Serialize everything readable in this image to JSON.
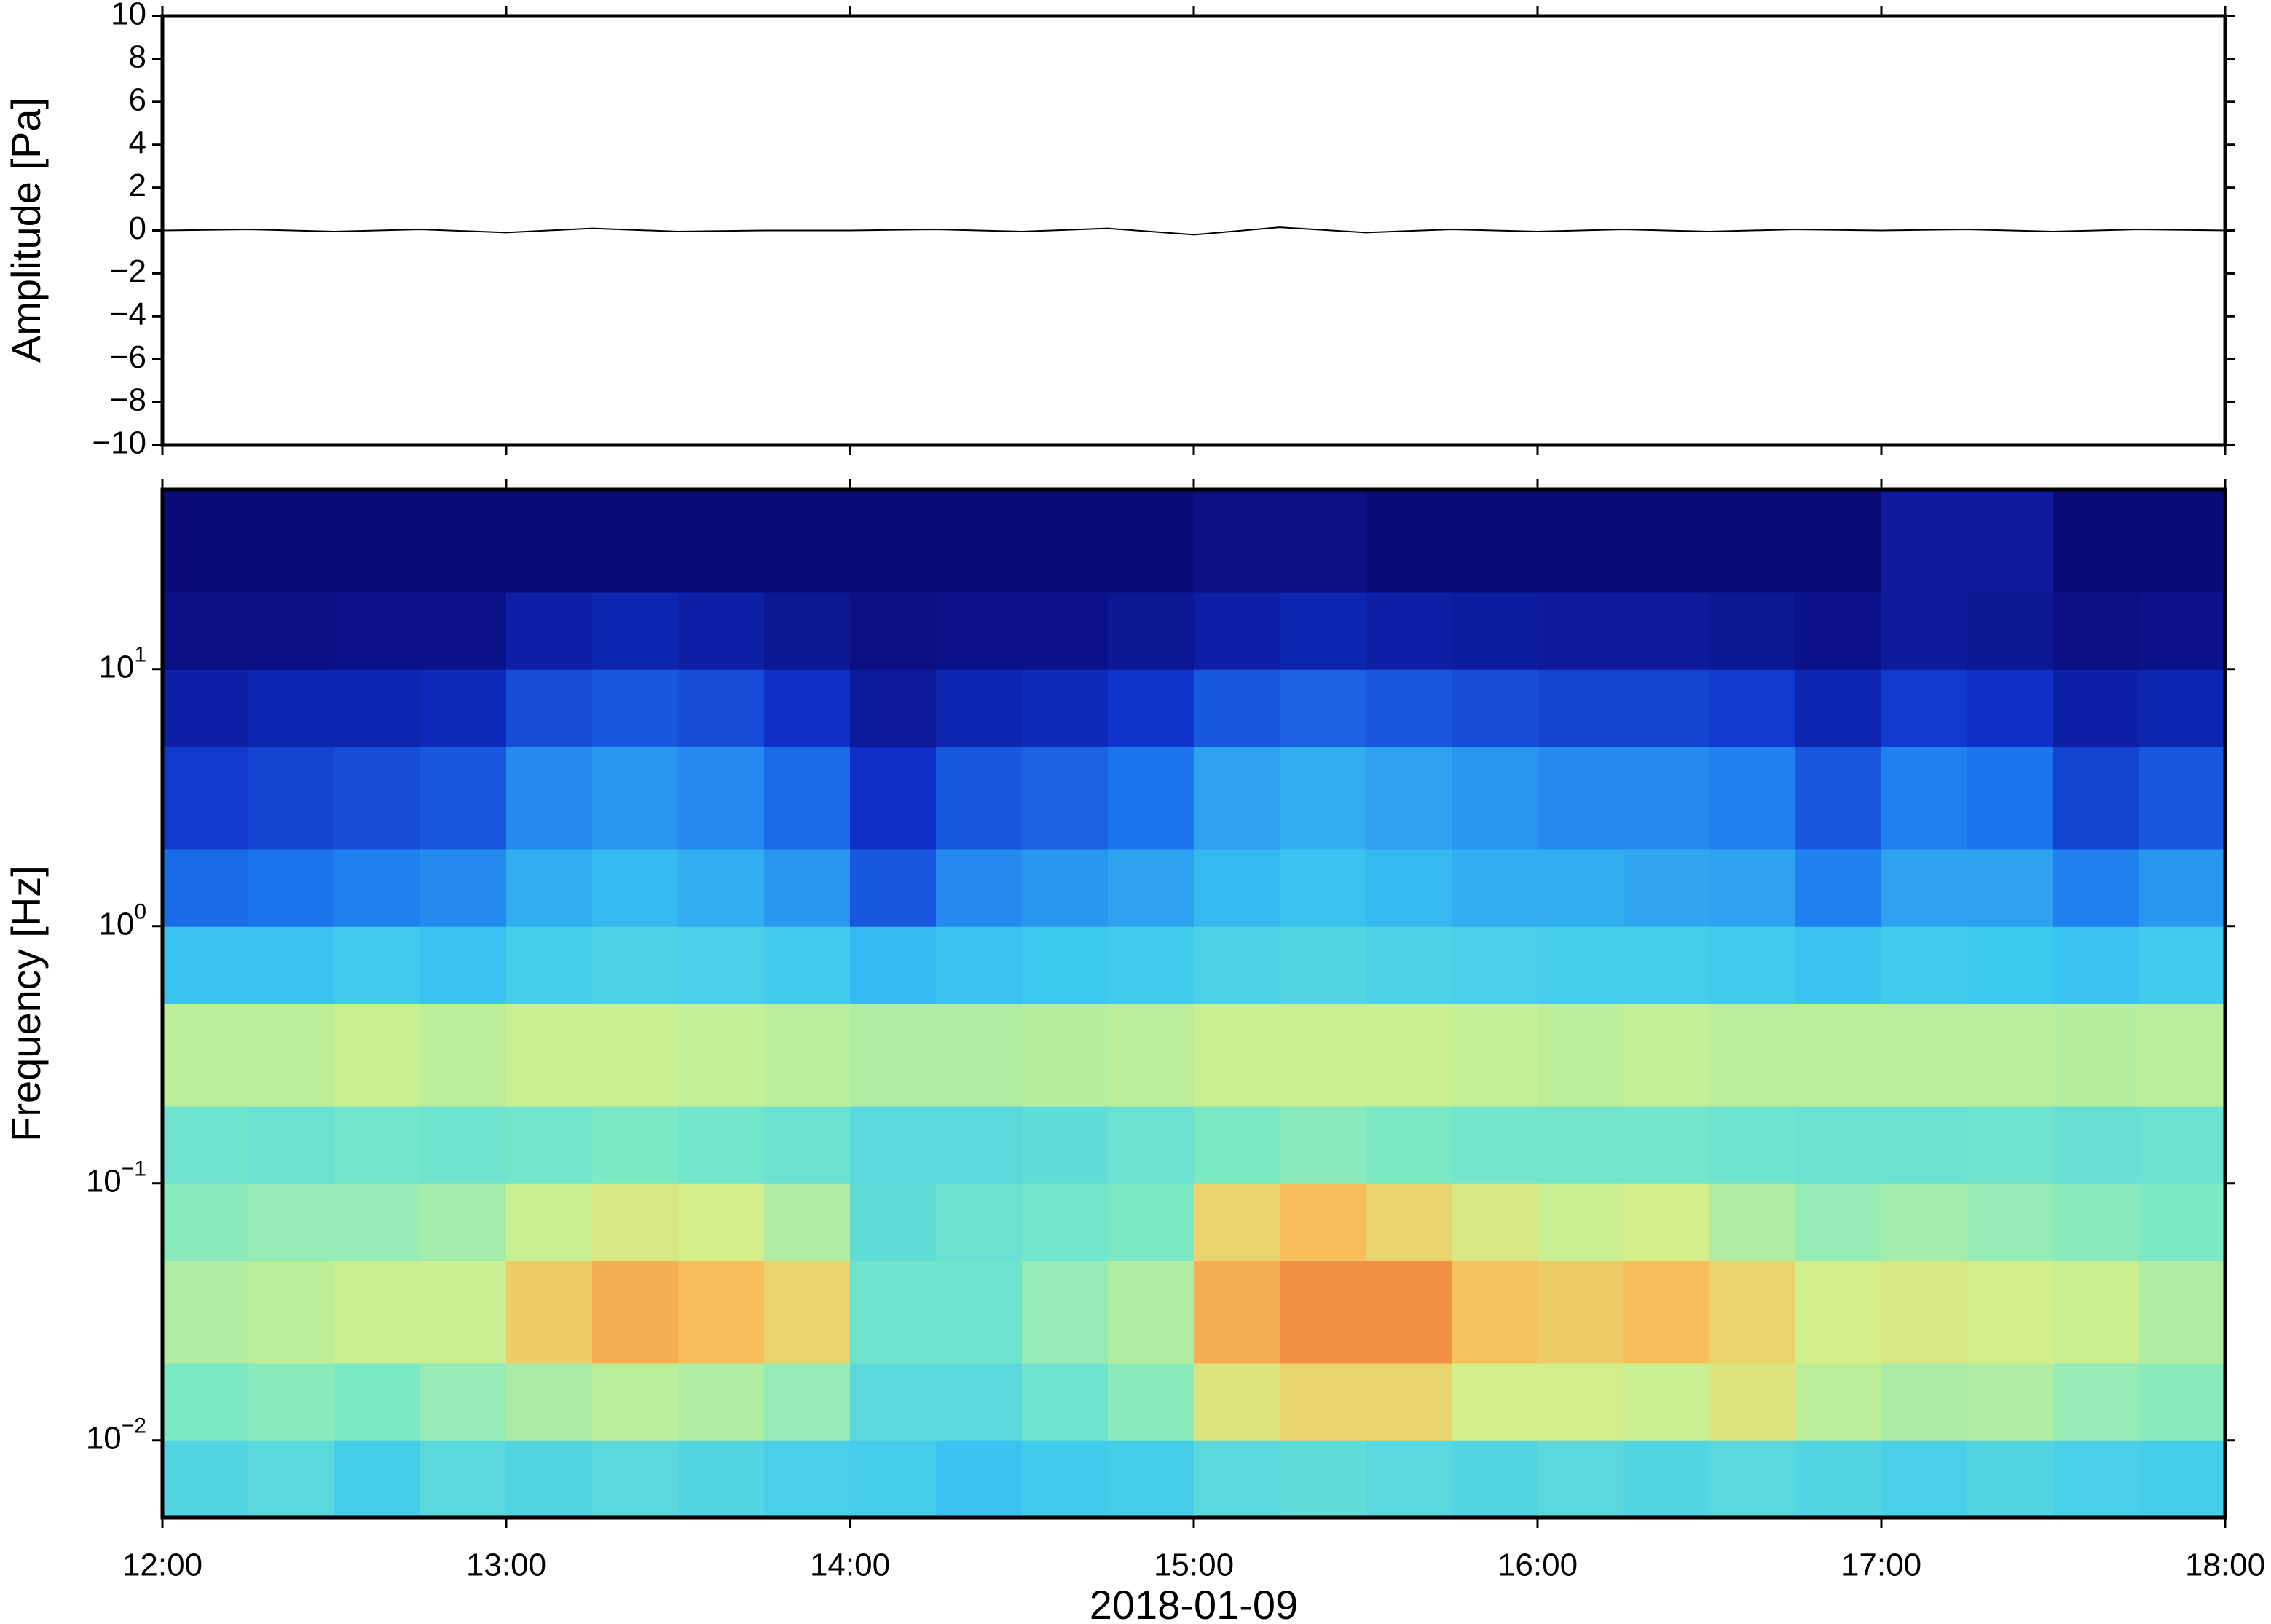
{
  "chart_data": [
    {
      "type": "line",
      "ylabel": "Amplitude [Pa]",
      "xlim": [
        "2018-01-09T12:00",
        "2018-01-09T18:00"
      ],
      "x": [
        "2018-01-09T12:00",
        "2018-01-09T12:15",
        "2018-01-09T12:30",
        "2018-01-09T12:45",
        "2018-01-09T13:00",
        "2018-01-09T13:15",
        "2018-01-09T13:30",
        "2018-01-09T13:45",
        "2018-01-09T14:00",
        "2018-01-09T14:15",
        "2018-01-09T14:30",
        "2018-01-09T14:45",
        "2018-01-09T15:00",
        "2018-01-09T15:15",
        "2018-01-09T15:30",
        "2018-01-09T15:45",
        "2018-01-09T16:00",
        "2018-01-09T16:15",
        "2018-01-09T16:30",
        "2018-01-09T16:45",
        "2018-01-09T17:00",
        "2018-01-09T17:15",
        "2018-01-09T17:30",
        "2018-01-09T17:45",
        "2018-01-09T18:00"
      ],
      "series": [
        {
          "color": "#000000",
          "values": [
            0,
            0.05,
            -0.05,
            0.05,
            -0.1,
            0.1,
            -0.05,
            0,
            0,
            0.05,
            -0.05,
            0.1,
            -0.2,
            0.15,
            -0.1,
            0.05,
            -0.05,
            0.05,
            -0.05,
            0.05,
            0,
            0.05,
            -0.05,
            0.05,
            0
          ]
        }
      ],
      "ylim": [
        -10,
        10
      ],
      "yticks": [
        {
          "value": -10,
          "label": "−10"
        },
        {
          "value": -8,
          "label": "−8"
        },
        {
          "value": -6,
          "label": "−6"
        },
        {
          "value": -4,
          "label": "−4"
        },
        {
          "value": -2,
          "label": "−2"
        },
        0,
        2,
        4,
        6,
        8,
        10
      ]
    },
    {
      "type": "heatmap",
      "ylabel": "Frequency [Hz]",
      "xlabel": "2018-01-09",
      "xlim": [
        "2018-01-09T12:00",
        "2018-01-09T18:00"
      ],
      "xticks": [
        {
          "value": "2018-01-09T12:00",
          "label": "12:00"
        },
        {
          "value": "2018-01-09T13:00",
          "label": "13:00"
        },
        {
          "value": "2018-01-09T14:00",
          "label": "14:00"
        },
        {
          "value": "2018-01-09T15:00",
          "label": "15:00"
        },
        {
          "value": "2018-01-09T16:00",
          "label": "16:00"
        },
        {
          "value": "2018-01-09T17:00",
          "label": "17:00"
        },
        {
          "value": "2018-01-09T18:00",
          "label": "18:00"
        }
      ],
      "log_y": true,
      "ylim": [
        0.005,
        50
      ],
      "yticks": [
        {
          "value": 0.01,
          "label": "10",
          "exponent": "−2"
        },
        {
          "value": 0.1,
          "label": "10",
          "exponent": "−1"
        },
        {
          "value": 1,
          "label": "10",
          "exponent": "0"
        },
        {
          "value": 10,
          "label": "10",
          "exponent": "1"
        }
      ],
      "x_bins": [
        "2018-01-09T12:00",
        "2018-01-09T12:15",
        "2018-01-09T12:30",
        "2018-01-09T12:45",
        "2018-01-09T13:00",
        "2018-01-09T13:15",
        "2018-01-09T13:30",
        "2018-01-09T13:45",
        "2018-01-09T14:00",
        "2018-01-09T14:15",
        "2018-01-09T14:30",
        "2018-01-09T14:45",
        "2018-01-09T15:00",
        "2018-01-09T15:15",
        "2018-01-09T15:30",
        "2018-01-09T15:45",
        "2018-01-09T16:00",
        "2018-01-09T16:15",
        "2018-01-09T16:30",
        "2018-01-09T16:45",
        "2018-01-09T17:00",
        "2018-01-09T17:15",
        "2018-01-09T17:30",
        "2018-01-09T17:45",
        "2018-01-09T18:00"
      ],
      "y_bins": [
        0.005,
        0.01,
        0.02,
        0.05,
        0.1,
        0.2,
        0.5,
        1,
        2,
        5,
        10,
        20,
        50
      ],
      "zlim": [
        0,
        1
      ],
      "colormap": [
        "#0a0a78",
        "#1030c8",
        "#1e78f0",
        "#3cc8f0",
        "#78e8c8",
        "#d2f08c",
        "#f8c05a",
        "#e8502a"
      ],
      "z": [
        [
          0.48,
          0.5,
          0.45,
          0.5,
          0.48,
          0.5,
          0.48,
          0.46,
          0.45,
          0.42,
          0.44,
          0.45,
          0.5,
          0.52,
          0.5,
          0.48,
          0.5,
          0.48,
          0.5,
          0.48,
          0.46,
          0.48,
          0.46,
          0.45
        ],
        [
          0.58,
          0.6,
          0.58,
          0.62,
          0.65,
          0.68,
          0.66,
          0.62,
          0.5,
          0.5,
          0.55,
          0.6,
          0.75,
          0.8,
          0.8,
          0.72,
          0.72,
          0.7,
          0.75,
          0.68,
          0.65,
          0.66,
          0.62,
          0.6
        ],
        [
          0.66,
          0.68,
          0.7,
          0.7,
          0.82,
          0.88,
          0.86,
          0.8,
          0.55,
          0.55,
          0.62,
          0.66,
          0.88,
          0.92,
          0.92,
          0.85,
          0.82,
          0.86,
          0.8,
          0.72,
          0.74,
          0.72,
          0.7,
          0.66
        ],
        [
          0.6,
          0.62,
          0.62,
          0.64,
          0.7,
          0.74,
          0.72,
          0.66,
          0.52,
          0.54,
          0.56,
          0.58,
          0.8,
          0.86,
          0.8,
          0.74,
          0.7,
          0.72,
          0.66,
          0.62,
          0.64,
          0.62,
          0.6,
          0.58
        ],
        [
          0.55,
          0.54,
          0.56,
          0.55,
          0.56,
          0.58,
          0.56,
          0.54,
          0.5,
          0.5,
          0.52,
          0.54,
          0.58,
          0.6,
          0.58,
          0.56,
          0.56,
          0.56,
          0.55,
          0.54,
          0.54,
          0.55,
          0.53,
          0.54
        ],
        [
          0.68,
          0.68,
          0.7,
          0.68,
          0.7,
          0.7,
          0.69,
          0.68,
          0.66,
          0.66,
          0.67,
          0.68,
          0.7,
          0.7,
          0.7,
          0.69,
          0.68,
          0.69,
          0.68,
          0.68,
          0.68,
          0.68,
          0.67,
          0.68
        ],
        [
          0.42,
          0.42,
          0.44,
          0.42,
          0.45,
          0.47,
          0.46,
          0.44,
          0.4,
          0.42,
          0.43,
          0.44,
          0.47,
          0.48,
          0.47,
          0.46,
          0.45,
          0.45,
          0.44,
          0.42,
          0.44,
          0.43,
          0.42,
          0.44
        ],
        [
          0.26,
          0.28,
          0.3,
          0.32,
          0.38,
          0.4,
          0.38,
          0.34,
          0.22,
          0.32,
          0.34,
          0.36,
          0.4,
          0.42,
          0.4,
          0.38,
          0.38,
          0.37,
          0.36,
          0.3,
          0.36,
          0.36,
          0.3,
          0.34
        ],
        [
          0.16,
          0.18,
          0.2,
          0.22,
          0.32,
          0.34,
          0.32,
          0.26,
          0.14,
          0.22,
          0.24,
          0.28,
          0.36,
          0.38,
          0.36,
          0.34,
          0.32,
          0.32,
          0.3,
          0.22,
          0.3,
          0.28,
          0.18,
          0.22
        ],
        [
          0.08,
          0.1,
          0.1,
          0.12,
          0.2,
          0.22,
          0.2,
          0.14,
          0.06,
          0.1,
          0.12,
          0.15,
          0.22,
          0.24,
          0.22,
          0.2,
          0.18,
          0.18,
          0.16,
          0.1,
          0.16,
          0.14,
          0.08,
          0.1
        ],
        [
          0.02,
          0.02,
          0.03,
          0.03,
          0.08,
          0.1,
          0.08,
          0.05,
          0.02,
          0.03,
          0.03,
          0.05,
          0.08,
          0.1,
          0.08,
          0.07,
          0.06,
          0.06,
          0.05,
          0.03,
          0.06,
          0.05,
          0.02,
          0.03
        ],
        [
          0,
          0,
          0,
          0,
          0,
          0,
          0,
          0,
          0,
          0,
          0,
          0,
          0.02,
          0.02,
          0,
          0,
          0,
          0,
          0,
          0,
          0.06,
          0.06,
          0,
          0
        ]
      ]
    }
  ]
}
